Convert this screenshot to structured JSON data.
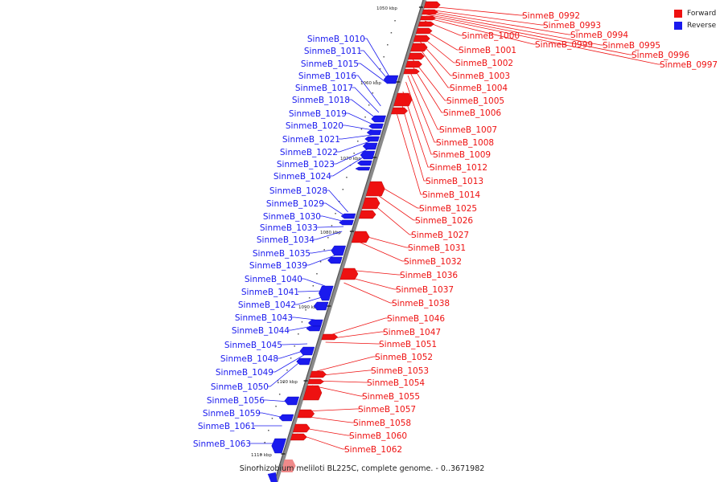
{
  "legend": {
    "forward": {
      "label": "Forward",
      "color": "#ee1111"
    },
    "reverse": {
      "label": "Reverse",
      "color": "#1a1aee"
    }
  },
  "caption": "Sinorhizobium meliloti BL225C, complete genome. - 0..3671982",
  "ticks": [
    "1050 kbp",
    "1060 kbp",
    "1070 kbp",
    "1080 kbp",
    "1090 kbp",
    "1100 kbp",
    "1110 kbp"
  ],
  "genes_forward": [
    "SinmeB_0992",
    "SinmeB_0993",
    "SinmeB_0994",
    "SinmeB_0995",
    "SinmeB_0996",
    "SinmeB_0997",
    "SinmeB_1000",
    "SinmeB_0999",
    "SinmeB_1001",
    "SinmeB_1002",
    "SinmeB_1003",
    "SinmeB_1004",
    "SinmeB_1005",
    "SinmeB_1006",
    "SinmeB_1007",
    "SinmeB_1008",
    "SinmeB_1009",
    "SinmeB_1012",
    "SinmeB_1013",
    "SinmeB_1014",
    "SinmeB_1025",
    "SinmeB_1026",
    "SinmeB_1027",
    "SinmeB_1031",
    "SinmeB_1032",
    "SinmeB_1036",
    "SinmeB_1037",
    "SinmeB_1038",
    "SinmeB_1046",
    "SinmeB_1047",
    "SinmeB_1051",
    "SinmeB_1052",
    "SinmeB_1053",
    "SinmeB_1054",
    "SinmeB_1055",
    "SinmeB_1057",
    "SinmeB_1058",
    "SinmeB_1060",
    "SinmeB_1062"
  ],
  "genes_reverse": [
    "SinmeB_1010",
    "SinmeB_1011",
    "SinmeB_1015",
    "SinmeB_1016",
    "SinmeB_1017",
    "SinmeB_1018",
    "SinmeB_1019",
    "SinmeB_1020",
    "SinmeB_1021",
    "SinmeB_1022",
    "SinmeB_1023",
    "SinmeB_1024",
    "SinmeB_1028",
    "SinmeB_1029",
    "SinmeB_1030",
    "SinmeB_1033",
    "SinmeB_1034",
    "SinmeB_1035",
    "SinmeB_1039",
    "SinmeB_1040",
    "SinmeB_1041",
    "SinmeB_1042",
    "SinmeB_1043",
    "SinmeB_1044",
    "SinmeB_1045",
    "SinmeB_1048",
    "SinmeB_1049",
    "SinmeB_1050",
    "SinmeB_1056",
    "SinmeB_1059",
    "SinmeB_1061",
    "SinmeB_1063"
  ]
}
